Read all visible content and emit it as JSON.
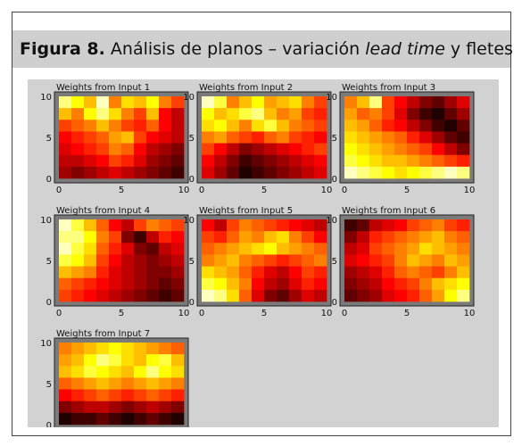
{
  "caption": {
    "label": "Figura 8.",
    "text_before": "Análisis de planos – variación ",
    "text_italic": "lead time",
    "text_after": " y fletes"
  },
  "colors": {
    "panel_bg": "#d2d2d2",
    "axes_bg": "#7a7a7a",
    "heat_low": "#000000",
    "heat_mid": "#ff0000",
    "heat_high": "#ffff00"
  },
  "chart_data": [
    {
      "type": "heatmap",
      "title": "Weights from Input 1",
      "x_ticks": [
        "0",
        "5",
        "10"
      ],
      "y_ticks": [
        "10",
        "5",
        "0"
      ],
      "xlim": [
        0,
        10
      ],
      "ylim": [
        0,
        10
      ],
      "grid": false,
      "z": [
        [
          0.9,
          0.8,
          0.7,
          0.95,
          0.6,
          0.75,
          0.7,
          0.8,
          0.6,
          0.5
        ],
        [
          0.7,
          0.6,
          0.8,
          0.9,
          0.75,
          0.6,
          0.5,
          0.7,
          0.4,
          0.3
        ],
        [
          0.5,
          0.55,
          0.6,
          0.7,
          0.6,
          0.5,
          0.45,
          0.55,
          0.4,
          0.3
        ],
        [
          0.4,
          0.45,
          0.5,
          0.55,
          0.65,
          0.7,
          0.5,
          0.4,
          0.35,
          0.3
        ],
        [
          0.35,
          0.4,
          0.45,
          0.5,
          0.6,
          0.55,
          0.4,
          0.3,
          0.25,
          0.2
        ],
        [
          0.3,
          0.3,
          0.35,
          0.4,
          0.5,
          0.45,
          0.35,
          0.25,
          0.2,
          0.15
        ],
        [
          0.25,
          0.2,
          0.25,
          0.3,
          0.35,
          0.3,
          0.25,
          0.2,
          0.15,
          0.1
        ]
      ]
    },
    {
      "type": "heatmap",
      "title": "Weights from Input 2",
      "x_ticks": [
        "0",
        "5",
        "10"
      ],
      "y_ticks": [
        "10",
        "5",
        "0"
      ],
      "xlim": [
        0,
        10
      ],
      "ylim": [
        0,
        10
      ],
      "grid": false,
      "z": [
        [
          0.95,
          0.85,
          0.6,
          0.7,
          0.8,
          0.65,
          0.7,
          0.75,
          0.6,
          0.5
        ],
        [
          0.8,
          0.7,
          0.75,
          0.85,
          0.9,
          0.7,
          0.6,
          0.65,
          0.5,
          0.45
        ],
        [
          0.75,
          0.8,
          0.7,
          0.6,
          0.75,
          0.85,
          0.7,
          0.6,
          0.55,
          0.5
        ],
        [
          0.6,
          0.65,
          0.55,
          0.5,
          0.45,
          0.55,
          0.6,
          0.5,
          0.45,
          0.4
        ],
        [
          0.5,
          0.4,
          0.3,
          0.2,
          0.25,
          0.3,
          0.35,
          0.4,
          0.45,
          0.5
        ],
        [
          0.4,
          0.3,
          0.2,
          0.1,
          0.15,
          0.2,
          0.25,
          0.3,
          0.35,
          0.4
        ],
        [
          0.35,
          0.25,
          0.15,
          0.05,
          0.1,
          0.15,
          0.2,
          0.25,
          0.3,
          0.35
        ]
      ]
    },
    {
      "type": "heatmap",
      "title": "Weights from Input 3",
      "x_ticks": [
        "0",
        "5",
        "10"
      ],
      "y_ticks": [
        "10",
        "5",
        "0"
      ],
      "xlim": [
        0,
        10
      ],
      "ylim": [
        0,
        10
      ],
      "grid": false,
      "z": [
        [
          0.6,
          0.7,
          0.9,
          0.5,
          0.4,
          0.3,
          0.2,
          0.15,
          0.25,
          0.35
        ],
        [
          0.65,
          0.55,
          0.6,
          0.5,
          0.35,
          0.2,
          0.1,
          0.05,
          0.15,
          0.25
        ],
        [
          0.7,
          0.65,
          0.55,
          0.45,
          0.4,
          0.3,
          0.2,
          0.1,
          0.05,
          0.15
        ],
        [
          0.75,
          0.7,
          0.65,
          0.6,
          0.55,
          0.45,
          0.35,
          0.25,
          0.15,
          0.1
        ],
        [
          0.8,
          0.75,
          0.7,
          0.65,
          0.6,
          0.55,
          0.5,
          0.4,
          0.3,
          0.2
        ],
        [
          0.85,
          0.8,
          0.75,
          0.7,
          0.7,
          0.65,
          0.6,
          0.55,
          0.5,
          0.45
        ],
        [
          0.95,
          0.9,
          0.85,
          0.8,
          0.75,
          0.8,
          0.85,
          0.9,
          0.95,
          0.9
        ]
      ]
    },
    {
      "type": "heatmap",
      "title": "Weights from Input 4",
      "x_ticks": [
        "0",
        "5",
        "10"
      ],
      "y_ticks": [
        "10",
        "5",
        "0"
      ],
      "xlim": [
        0,
        10
      ],
      "ylim": [
        0,
        10
      ],
      "grid": false,
      "z": [
        [
          0.95,
          0.85,
          0.7,
          0.55,
          0.4,
          0.3,
          0.5,
          0.6,
          0.55,
          0.5
        ],
        [
          0.9,
          0.9,
          0.8,
          0.6,
          0.5,
          0.2,
          0.1,
          0.3,
          0.45,
          0.4
        ],
        [
          0.95,
          0.85,
          0.75,
          0.55,
          0.45,
          0.35,
          0.2,
          0.15,
          0.3,
          0.35
        ],
        [
          0.85,
          0.8,
          0.7,
          0.5,
          0.4,
          0.3,
          0.25,
          0.2,
          0.25,
          0.3
        ],
        [
          0.7,
          0.65,
          0.6,
          0.45,
          0.35,
          0.3,
          0.25,
          0.2,
          0.2,
          0.25
        ],
        [
          0.55,
          0.5,
          0.45,
          0.4,
          0.35,
          0.3,
          0.25,
          0.2,
          0.15,
          0.2
        ],
        [
          0.5,
          0.45,
          0.4,
          0.35,
          0.3,
          0.25,
          0.2,
          0.15,
          0.1,
          0.15
        ]
      ]
    },
    {
      "type": "heatmap",
      "title": "Weights from Input 5",
      "x_ticks": [
        "0",
        "5",
        "10"
      ],
      "y_ticks": [
        "10",
        "5",
        "0"
      ],
      "xlim": [
        0,
        10
      ],
      "ylim": [
        0,
        10
      ],
      "grid": false,
      "z": [
        [
          0.4,
          0.3,
          0.5,
          0.6,
          0.55,
          0.5,
          0.45,
          0.4,
          0.35,
          0.3
        ],
        [
          0.5,
          0.45,
          0.55,
          0.65,
          0.6,
          0.7,
          0.75,
          0.6,
          0.5,
          0.4
        ],
        [
          0.55,
          0.6,
          0.65,
          0.7,
          0.75,
          0.8,
          0.7,
          0.65,
          0.6,
          0.55
        ],
        [
          0.6,
          0.65,
          0.7,
          0.6,
          0.55,
          0.5,
          0.45,
          0.5,
          0.55,
          0.6
        ],
        [
          0.75,
          0.7,
          0.65,
          0.55,
          0.45,
          0.35,
          0.3,
          0.4,
          0.5,
          0.45
        ],
        [
          0.85,
          0.8,
          0.7,
          0.6,
          0.4,
          0.3,
          0.25,
          0.35,
          0.45,
          0.4
        ],
        [
          0.95,
          0.9,
          0.75,
          0.55,
          0.35,
          0.2,
          0.15,
          0.25,
          0.35,
          0.3
        ]
      ]
    },
    {
      "type": "heatmap",
      "title": "Weights from Input 6",
      "x_ticks": [
        "0",
        "5",
        "10"
      ],
      "y_ticks": [
        "10",
        "5",
        "0"
      ],
      "xlim": [
        0,
        10
      ],
      "ylim": [
        0,
        10
      ],
      "grid": false,
      "z": [
        [
          0.1,
          0.15,
          0.3,
          0.35,
          0.4,
          0.5,
          0.55,
          0.6,
          0.5,
          0.45
        ],
        [
          0.2,
          0.3,
          0.45,
          0.5,
          0.55,
          0.6,
          0.65,
          0.7,
          0.6,
          0.55
        ],
        [
          0.3,
          0.35,
          0.5,
          0.55,
          0.6,
          0.65,
          0.75,
          0.7,
          0.65,
          0.6
        ],
        [
          0.35,
          0.4,
          0.45,
          0.5,
          0.6,
          0.7,
          0.65,
          0.6,
          0.7,
          0.65
        ],
        [
          0.25,
          0.3,
          0.35,
          0.45,
          0.55,
          0.6,
          0.55,
          0.5,
          0.6,
          0.7
        ],
        [
          0.2,
          0.25,
          0.3,
          0.4,
          0.45,
          0.5,
          0.6,
          0.7,
          0.75,
          0.8
        ],
        [
          0.15,
          0.2,
          0.25,
          0.35,
          0.4,
          0.45,
          0.55,
          0.65,
          0.8,
          0.9
        ]
      ]
    },
    {
      "type": "heatmap",
      "title": "Weights from Input 7",
      "x_ticks": [
        "0",
        "5",
        "10"
      ],
      "y_ticks": [
        "10",
        "5",
        "0"
      ],
      "xlim": [
        0,
        10
      ],
      "ylim": [
        0,
        10
      ],
      "grid": false,
      "z": [
        [
          0.6,
          0.65,
          0.7,
          0.75,
          0.8,
          0.75,
          0.7,
          0.65,
          0.6,
          0.55
        ],
        [
          0.65,
          0.7,
          0.8,
          0.9,
          0.85,
          0.75,
          0.7,
          0.8,
          0.85,
          0.7
        ],
        [
          0.7,
          0.75,
          0.85,
          0.8,
          0.75,
          0.7,
          0.8,
          0.9,
          0.8,
          0.75
        ],
        [
          0.55,
          0.6,
          0.65,
          0.7,
          0.65,
          0.6,
          0.65,
          0.7,
          0.65,
          0.6
        ],
        [
          0.4,
          0.45,
          0.5,
          0.55,
          0.5,
          0.45,
          0.5,
          0.55,
          0.5,
          0.45
        ],
        [
          0.2,
          0.25,
          0.3,
          0.3,
          0.25,
          0.2,
          0.25,
          0.3,
          0.25,
          0.2
        ],
        [
          0.05,
          0.1,
          0.1,
          0.15,
          0.1,
          0.05,
          0.1,
          0.15,
          0.1,
          0.05
        ]
      ]
    }
  ]
}
